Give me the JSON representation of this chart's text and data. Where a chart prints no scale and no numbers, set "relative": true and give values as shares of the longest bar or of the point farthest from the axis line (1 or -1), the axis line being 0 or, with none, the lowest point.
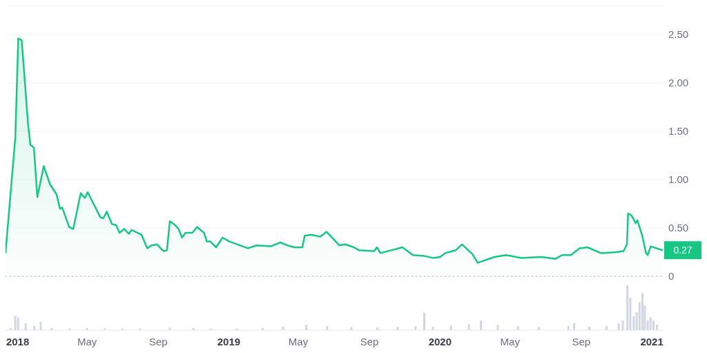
{
  "chart_data": [
    {
      "type": "area",
      "color": "#16c784",
      "x": [
        "2017-12-11",
        "2017-12-28",
        "2018-01-02",
        "2018-01-08",
        "2018-01-19",
        "2018-01-23",
        "2018-01-29",
        "2018-02-04",
        "2018-02-15",
        "2018-02-26",
        "2018-03-09",
        "2018-03-15",
        "2018-03-19",
        "2018-03-31",
        "2018-04-07",
        "2018-04-20",
        "2018-04-27",
        "2018-05-02",
        "2018-05-24",
        "2018-05-29",
        "2018-06-04",
        "2018-06-13",
        "2018-06-20",
        "2018-06-26",
        "2018-07-04",
        "2018-07-12",
        "2018-07-17",
        "2018-08-03",
        "2018-08-13",
        "2018-08-20",
        "2018-08-30",
        "2018-09-10",
        "2018-09-16",
        "2018-09-21",
        "2018-09-30",
        "2018-10-06",
        "2018-10-12",
        "2018-10-18",
        "2018-10-30",
        "2018-11-07",
        "2018-11-19",
        "2018-11-24",
        "2018-11-30",
        "2018-12-10",
        "2018-12-21",
        "2019-01-02",
        "2019-01-20",
        "2019-02-03",
        "2019-02-18",
        "2019-03-14",
        "2019-03-31",
        "2019-04-12",
        "2019-04-24",
        "2019-05-08",
        "2019-05-12",
        "2019-05-23",
        "2019-06-08",
        "2019-06-19",
        "2019-07-11",
        "2019-07-21",
        "2019-08-05",
        "2019-08-14",
        "2019-09-09",
        "2019-09-14",
        "2019-09-20",
        "2019-10-28",
        "2019-11-15",
        "2019-12-05",
        "2019-12-20",
        "2020-01-01",
        "2020-01-10",
        "2020-01-28",
        "2020-02-08",
        "2020-02-26",
        "2020-03-06",
        "2020-04-04",
        "2020-04-24",
        "2020-05-21",
        "2020-06-25",
        "2020-07-18",
        "2020-07-30",
        "2020-08-14",
        "2020-08-29",
        "2020-09-12",
        "2020-09-23",
        "2020-10-05",
        "2020-11-01",
        "2020-11-13",
        "2020-11-19",
        "2020-11-21",
        "2020-11-27",
        "2020-12-04",
        "2020-12-07",
        "2020-12-15",
        "2020-12-22",
        "2020-12-25",
        "2020-12-30",
        "2021-01-14",
        "2021-01-20"
      ],
      "values": [
        0.24,
        1.44,
        2.46,
        2.44,
        1.57,
        1.36,
        1.33,
        0.82,
        1.14,
        0.95,
        0.85,
        0.7,
        0.71,
        0.51,
        0.49,
        0.86,
        0.81,
        0.87,
        0.61,
        0.6,
        0.67,
        0.54,
        0.53,
        0.45,
        0.49,
        0.44,
        0.48,
        0.43,
        0.29,
        0.32,
        0.33,
        0.26,
        0.27,
        0.57,
        0.53,
        0.49,
        0.4,
        0.45,
        0.45,
        0.51,
        0.45,
        0.36,
        0.36,
        0.3,
        0.4,
        0.36,
        0.32,
        0.29,
        0.32,
        0.31,
        0.35,
        0.32,
        0.3,
        0.3,
        0.42,
        0.43,
        0.41,
        0.46,
        0.32,
        0.33,
        0.3,
        0.27,
        0.26,
        0.3,
        0.24,
        0.3,
        0.22,
        0.21,
        0.19,
        0.2,
        0.24,
        0.27,
        0.33,
        0.23,
        0.14,
        0.2,
        0.22,
        0.19,
        0.2,
        0.18,
        0.22,
        0.22,
        0.29,
        0.3,
        0.27,
        0.24,
        0.25,
        0.26,
        0.33,
        0.65,
        0.63,
        0.55,
        0.58,
        0.43,
        0.24,
        0.22,
        0.31,
        0.28,
        0.27
      ],
      "xlim": [
        "2017-12-11",
        "2021-01-20"
      ],
      "ylim": [
        0,
        2.8
      ],
      "yticks": [
        0,
        {
          "value": 0.5,
          "label": "0.50"
        },
        {
          "value": 1,
          "label": "1.00"
        },
        {
          "value": 1.5,
          "label": "1.50"
        },
        {
          "value": 2,
          "label": "2.00"
        },
        {
          "value": 2.5,
          "label": "2.50"
        }
      ],
      "grid": "y",
      "tick_labels": "y",
      "annotations": [
        {
          "text": "0.27",
          "x": "2021-01-20",
          "y": 0.27
        }
      ]
    },
    {
      "type": "bar",
      "relative": true,
      "color": "#cfd6e4",
      "x": [
        "2017-12-20",
        "2017-12-28",
        "2018-01-02",
        "2018-01-15",
        "2018-01-30",
        "2018-02-10",
        "2018-03-01",
        "2018-04-01",
        "2018-05-01",
        "2018-06-01",
        "2018-07-01",
        "2018-08-01",
        "2018-09-21",
        "2018-11-01",
        "2018-12-01",
        "2019-01-15",
        "2019-03-01",
        "2019-04-05",
        "2019-05-15",
        "2019-06-20",
        "2019-08-01",
        "2019-09-15",
        "2019-10-20",
        "2019-11-20",
        "2019-12-05",
        "2019-12-20",
        "2020-01-20",
        "2020-02-20",
        "2020-03-12",
        "2020-04-10",
        "2020-05-15",
        "2020-06-20",
        "2020-08-10",
        "2020-08-20",
        "2020-09-15",
        "2020-10-15",
        "2020-11-05",
        "2020-11-12",
        "2020-11-20",
        "2020-11-25",
        "2020-12-01",
        "2020-12-06",
        "2020-12-11",
        "2020-12-16",
        "2020-12-20",
        "2020-12-25",
        "2020-12-30",
        "2021-01-04",
        "2021-01-10"
      ],
      "values": [
        0.05,
        0.32,
        0.28,
        0.16,
        0.1,
        0.19,
        0.05,
        0.04,
        0.05,
        0.04,
        0.04,
        0.04,
        0.06,
        0.05,
        0.04,
        0.04,
        0.05,
        0.08,
        0.12,
        0.09,
        0.07,
        0.06,
        0.07,
        0.09,
        0.39,
        0.08,
        0.1,
        0.13,
        0.22,
        0.12,
        0.09,
        0.07,
        0.09,
        0.16,
        0.08,
        0.09,
        0.15,
        0.22,
        1,
        0.72,
        0.31,
        0.4,
        0.62,
        0.83,
        0.55,
        0.22,
        0.29,
        0.22,
        0.12
      ],
      "xlim": [
        "2017-12-11",
        "2021-01-20"
      ],
      "xticks": [
        {
          "value": "2018-01-01",
          "label": "2018"
        },
        {
          "value": "2018-05-01",
          "label": "May"
        },
        {
          "value": "2018-09-01",
          "label": "Sep"
        },
        {
          "value": "2019-01-01",
          "label": "2019"
        },
        {
          "value": "2019-05-01",
          "label": "May"
        },
        {
          "value": "2019-09-01",
          "label": "Sep"
        },
        {
          "value": "2020-01-01",
          "label": "2020"
        },
        {
          "value": "2020-05-01",
          "label": "May"
        },
        {
          "value": "2020-09-01",
          "label": "Sep"
        },
        {
          "value": "2021-01-01",
          "label": "2021"
        }
      ],
      "tick_labels": "x"
    }
  ]
}
